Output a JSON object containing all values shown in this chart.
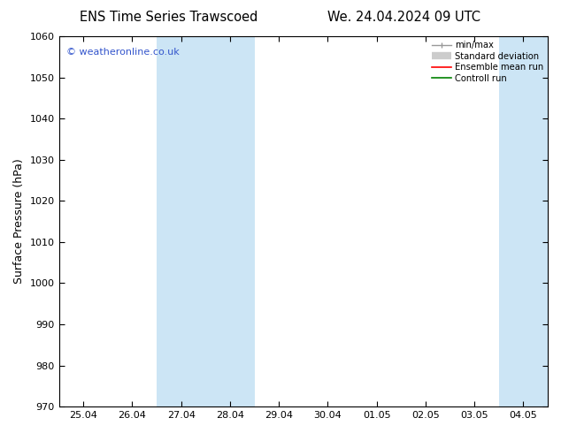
{
  "title_left": "ENS Time Series Trawscoed",
  "title_right": "We. 24.04.2024 09 UTC",
  "ylabel": "Surface Pressure (hPa)",
  "ylim": [
    970,
    1060
  ],
  "yticks": [
    970,
    980,
    990,
    1000,
    1010,
    1020,
    1030,
    1040,
    1050,
    1060
  ],
  "xtick_labels": [
    "25.04",
    "26.04",
    "27.04",
    "28.04",
    "29.04",
    "30.04",
    "01.05",
    "02.05",
    "03.05",
    "04.05"
  ],
  "shaded_regions": [
    {
      "xstart": 2.0,
      "xend": 4.0,
      "color": "#cce5f5"
    },
    {
      "xstart": 9.0,
      "xend": 10.5,
      "color": "#cce5f5"
    }
  ],
  "watermark": "© weatheronline.co.uk",
  "watermark_color": "#3355cc",
  "background_color": "#ffffff",
  "title_fontsize": 10.5,
  "label_fontsize": 9,
  "tick_fontsize": 8
}
